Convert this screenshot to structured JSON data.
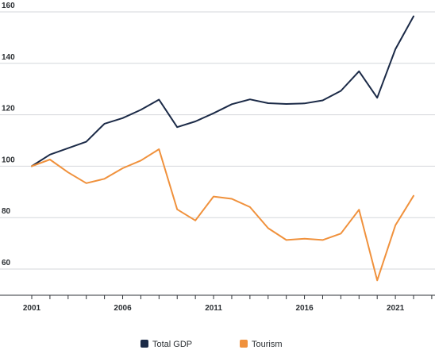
{
  "chart_data": {
    "type": "line",
    "x": [
      2001,
      2002,
      2003,
      2004,
      2005,
      2006,
      2007,
      2008,
      2009,
      2010,
      2011,
      2012,
      2013,
      2014,
      2015,
      2016,
      2017,
      2018,
      2019,
      2020,
      2021,
      2022
    ],
    "x_tick_labels": [
      "2001",
      "2006",
      "2011",
      "2016",
      "2021"
    ],
    "x_tick_values": [
      2001,
      2006,
      2011,
      2016,
      2021
    ],
    "xlim": [
      2001,
      2023
    ],
    "y_tick_labels": [
      "60",
      "80",
      "100",
      "120",
      "140",
      "160"
    ],
    "y_tick_values": [
      60,
      80,
      100,
      120,
      140,
      160
    ],
    "ylim": [
      50,
      162
    ],
    "grid": "horizontal",
    "legend_position": "bottom-center",
    "series": [
      {
        "name": "Total GDP",
        "color": "#1b2a47",
        "values": [
          100,
          104.5,
          107,
          109.5,
          116.5,
          118.7,
          121.9,
          125.9,
          115.2,
          117.4,
          120.6,
          124.1,
          126,
          124.5,
          124.2,
          124.4,
          125.6,
          129.3,
          136.9,
          126.6,
          145.5,
          158.3
        ]
      },
      {
        "name": "Tourism",
        "color": "#f0913c",
        "values": [
          100,
          102.6,
          97.6,
          93.4,
          95.1,
          99.2,
          102.2,
          106.6,
          83.2,
          78.9,
          88.2,
          87.3,
          84.1,
          75.9,
          71.3,
          71.8,
          71.3,
          73.8,
          83.1,
          55.6,
          77,
          88.5
        ]
      }
    ]
  }
}
